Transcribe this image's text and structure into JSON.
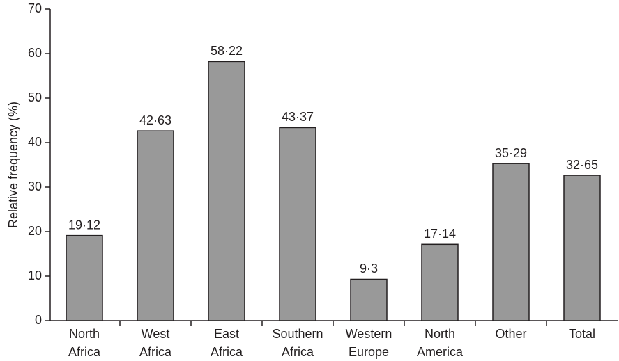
{
  "chart_data": {
    "type": "bar",
    "y_label": "Relative frequency (%)",
    "categories": [
      "North Africa",
      "West Africa",
      "East Africa",
      "Southern Africa",
      "Western Europe",
      "North America",
      "Other",
      "Total"
    ],
    "values": [
      19.12,
      42.63,
      58.22,
      43.37,
      9.3,
      17.14,
      35.29,
      32.65
    ],
    "value_labels": [
      "19·12",
      "42·63",
      "58·22",
      "43·37",
      "9·3",
      "17·14",
      "35·29",
      "32·65"
    ],
    "color": "#999999",
    "ylim": [
      0,
      70
    ],
    "yticks": [
      0,
      10,
      20,
      30,
      40,
      50,
      60,
      70
    ],
    "grid": false
  }
}
